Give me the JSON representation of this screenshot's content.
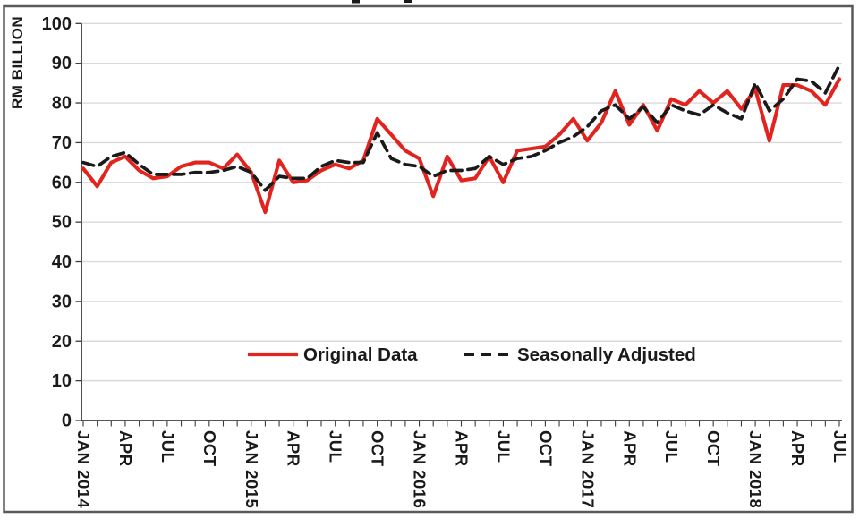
{
  "window": {
    "note_title_cropped": true
  },
  "chart_data": {
    "type": "line",
    "title": "",
    "ylabel": "RM BILLION",
    "xlabel": "",
    "ylim": [
      0,
      100
    ],
    "ytick_step": 10,
    "grid": "horizontal",
    "legend_position": "inside-lower-center",
    "y_tick_labels": [
      "0",
      "10",
      "20",
      "30",
      "40",
      "50",
      "60",
      "70",
      "80",
      "90",
      "100"
    ],
    "x_tick_labels": [
      "JAN 2014",
      "APR",
      "JUL",
      "OCT",
      "JAN 2015",
      "APR",
      "JUL",
      "OCT",
      "JAN 2016",
      "APR",
      "JUL",
      "OCT",
      "JAN 2017",
      "APR",
      "JUL",
      "OCT",
      "JAN 2018",
      "APR",
      "JUL"
    ],
    "x_label_every_n_months": 3,
    "n_points": 55,
    "x_start": "JAN 2014",
    "x_end": "JUL 2018",
    "series": [
      {
        "name": "Original Data",
        "style": "solid",
        "color": "#e2241f",
        "values": [
          63.5,
          59,
          65,
          66.5,
          63,
          61,
          61.5,
          64,
          65,
          65,
          63.5,
          67,
          62.5,
          52.5,
          65.5,
          60,
          60.5,
          63,
          64.5,
          63.5,
          65.5,
          76,
          72,
          68,
          66,
          56.5,
          66.5,
          60.5,
          61,
          66.5,
          60,
          68,
          68.5,
          69,
          72,
          76,
          70.5,
          75,
          83,
          74.5,
          79.5,
          73,
          81,
          79.5,
          83,
          80,
          83,
          78.5,
          83.5,
          70.5,
          84.5,
          84.5,
          83,
          79.5,
          86
        ]
      },
      {
        "name": "Seasonally Adjusted",
        "style": "dashed",
        "color": "#1a1a1a",
        "values": [
          65,
          64,
          66.5,
          67.5,
          64.5,
          62,
          62,
          62,
          62.5,
          62.5,
          63,
          64,
          62.5,
          58,
          61.5,
          61,
          61,
          64,
          65.5,
          65,
          65,
          72.5,
          66,
          64.5,
          64,
          61.5,
          63,
          63,
          63.5,
          66.5,
          64.5,
          66,
          66.5,
          68,
          70,
          71.5,
          74,
          78,
          79.5,
          76,
          79,
          75,
          79.5,
          78,
          77,
          79.5,
          77.5,
          76,
          85,
          78,
          81,
          86,
          85.5,
          82.5,
          89.5
        ]
      }
    ],
    "style": {
      "grid_color": "#d9d9d9",
      "axis_color": "#3b3b3b",
      "frame_border_color": "#58595b",
      "label_color": "#1a1a1a"
    }
  }
}
